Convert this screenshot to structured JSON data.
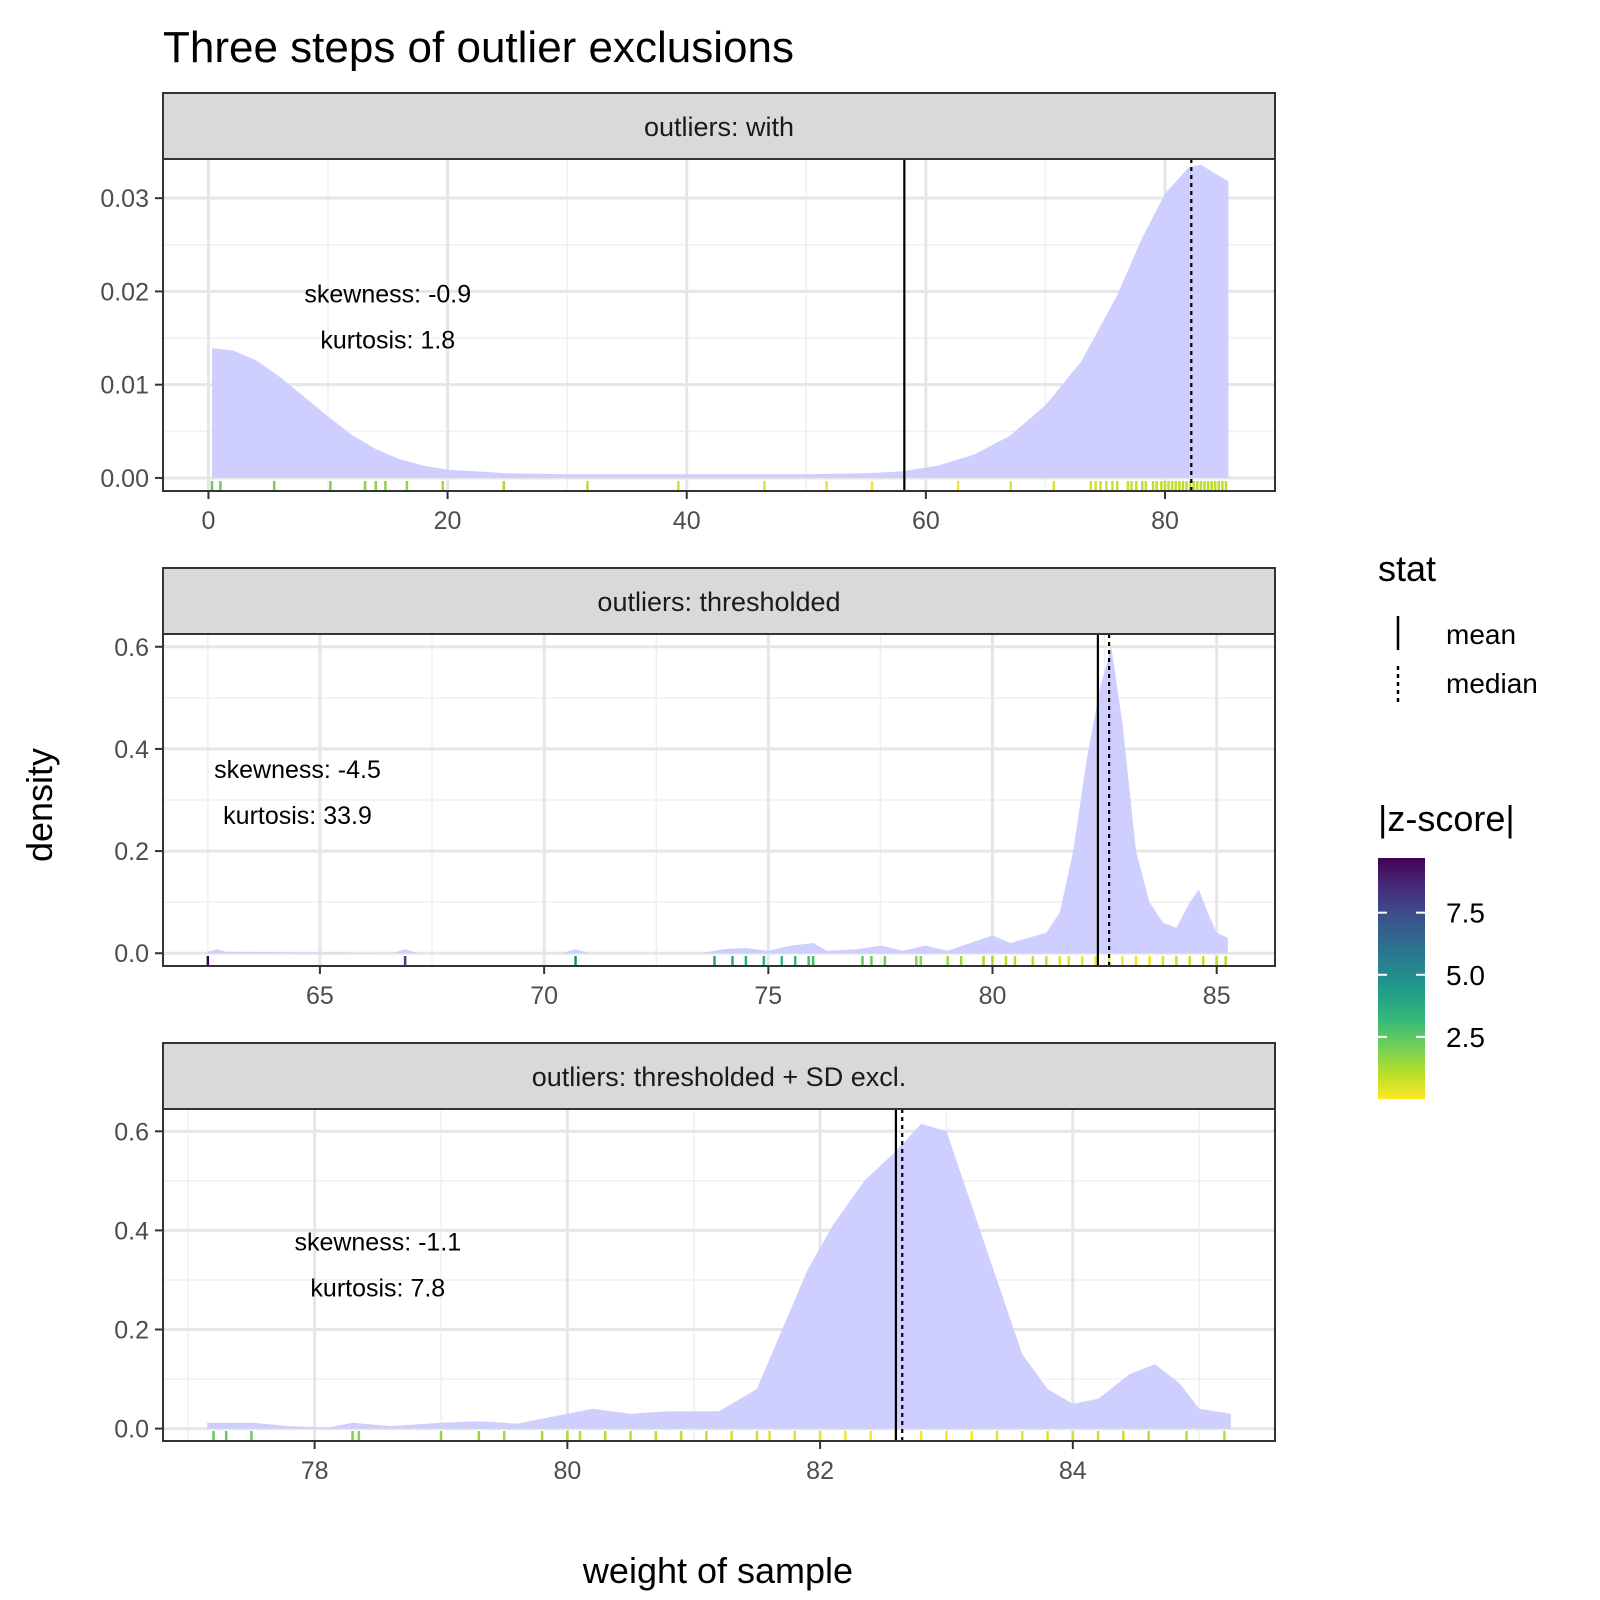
{
  "chart_data": {
    "type": "area",
    "title": "Three steps of outlier exclusions",
    "xlabel": "weight of sample",
    "ylabel": "density",
    "fill_color": "#ccccff",
    "grid": true,
    "legend": {
      "position": "right",
      "stat": {
        "title": "stat",
        "items": [
          {
            "label": "mean",
            "linetype": "solid"
          },
          {
            "label": "median",
            "linetype": "dotted"
          }
        ]
      },
      "zscore": {
        "title": "|z-score|",
        "scale": "viridis",
        "range": [
          0,
          9.7
        ],
        "ticks": [
          {
            "value": 7.5,
            "label": "7.5"
          },
          {
            "value": 5.0,
            "label": "5.0"
          },
          {
            "value": 2.5,
            "label": "2.5"
          }
        ],
        "colors": [
          "#FDE725",
          "#B5DE2B",
          "#6ECE58",
          "#35B779",
          "#1F9E89",
          "#26828E",
          "#31688E",
          "#3E4A89",
          "#482878",
          "#440154"
        ]
      }
    },
    "panels": [
      {
        "strip": "outliers: with",
        "xlim": [
          -3.8,
          89.2
        ],
        "ylim": [
          -0.0014,
          0.0342
        ],
        "xticks": [
          {
            "value": 0,
            "label": "0"
          },
          {
            "value": 20,
            "label": "20"
          },
          {
            "value": 40,
            "label": "40"
          },
          {
            "value": 60,
            "label": "60"
          },
          {
            "value": 80,
            "label": "80"
          }
        ],
        "yticks": [
          {
            "value": 0,
            "label": "0.00"
          },
          {
            "value": 0.01,
            "label": "0.01"
          },
          {
            "value": 0.02,
            "label": "0.02"
          },
          {
            "value": 0.03,
            "label": "0.03"
          }
        ],
        "mean": 58.2,
        "median": 82.2,
        "skewness_label": "skewness: -0.9",
        "kurtosis_label": "kurtosis: 1.8",
        "annotation_at": [
          15,
          0.0175
        ],
        "density": [
          [
            0.3,
            0.0139
          ],
          [
            2,
            0.0137
          ],
          [
            4,
            0.0126
          ],
          [
            6,
            0.0108
          ],
          [
            8,
            0.0087
          ],
          [
            10,
            0.0066
          ],
          [
            12,
            0.0046
          ],
          [
            14,
            0.0031
          ],
          [
            16,
            0.002
          ],
          [
            18,
            0.0013
          ],
          [
            20,
            0.0009
          ],
          [
            25,
            0.0005
          ],
          [
            30,
            0.0004
          ],
          [
            40,
            0.0004
          ],
          [
            50,
            0.0004
          ],
          [
            55,
            0.0005
          ],
          [
            58,
            0.0007
          ],
          [
            61,
            0.0013
          ],
          [
            64,
            0.0025
          ],
          [
            67,
            0.0045
          ],
          [
            70,
            0.0078
          ],
          [
            73,
            0.0125
          ],
          [
            76,
            0.0196
          ],
          [
            78,
            0.0255
          ],
          [
            80,
            0.0305
          ],
          [
            82,
            0.0333
          ],
          [
            83,
            0.0336
          ],
          [
            84,
            0.0328
          ],
          [
            85.3,
            0.0318
          ]
        ],
        "rug": [
          [
            0.3,
            2.3
          ],
          [
            1.0,
            2.2
          ],
          [
            5.5,
            2.1
          ],
          [
            10.2,
            1.9
          ],
          [
            13.1,
            1.8
          ],
          [
            14.0,
            1.8
          ],
          [
            14.8,
            1.7
          ],
          [
            16.6,
            1.6
          ],
          [
            19.6,
            1.4
          ],
          [
            24.7,
            1.2
          ],
          [
            31.7,
            0.9
          ],
          [
            39.3,
            0.6
          ],
          [
            46.5,
            0.4
          ],
          [
            51.7,
            0.2
          ],
          [
            55.5,
            0.1
          ],
          [
            62.7,
            0.2
          ],
          [
            67.1,
            0.4
          ],
          [
            70.7,
            0.5
          ],
          [
            73.8,
            0.7
          ],
          [
            74.2,
            0.7
          ],
          [
            74.6,
            0.7
          ],
          [
            75.1,
            0.7
          ],
          [
            75.6,
            0.8
          ],
          [
            76.0,
            0.8
          ],
          [
            76.9,
            0.8
          ],
          [
            77.2,
            0.8
          ],
          [
            77.6,
            0.8
          ],
          [
            78.1,
            0.9
          ],
          [
            78.4,
            0.9
          ],
          [
            79.0,
            0.9
          ],
          [
            79.3,
            0.9
          ],
          [
            79.7,
            0.9
          ],
          [
            80.0,
            0.9
          ],
          [
            80.3,
            0.9
          ],
          [
            80.6,
            0.9
          ],
          [
            80.9,
            0.9
          ],
          [
            81.2,
            1.0
          ],
          [
            81.5,
            1.0
          ],
          [
            81.8,
            1.0
          ],
          [
            82.1,
            1.0
          ],
          [
            82.4,
            1.0
          ],
          [
            82.7,
            1.0
          ],
          [
            83.0,
            1.0
          ],
          [
            83.3,
            1.0
          ],
          [
            83.6,
            1.0
          ],
          [
            83.9,
            1.0
          ],
          [
            84.2,
            1.0
          ],
          [
            84.5,
            1.0
          ],
          [
            84.8,
            1.0
          ],
          [
            85.1,
            1.0
          ]
        ]
      },
      {
        "strip": "outliers: thresholded",
        "xlim": [
          61.5,
          86.3
        ],
        "ylim": [
          -0.025,
          0.625
        ],
        "xticks": [
          {
            "value": 65,
            "label": "65"
          },
          {
            "value": 70,
            "label": "70"
          },
          {
            "value": 75,
            "label": "75"
          },
          {
            "value": 80,
            "label": "80"
          },
          {
            "value": 85,
            "label": "85"
          }
        ],
        "yticks": [
          {
            "value": 0,
            "label": "0.0"
          },
          {
            "value": 0.2,
            "label": "0.2"
          },
          {
            "value": 0.4,
            "label": "0.4"
          },
          {
            "value": 0.6,
            "label": "0.6"
          }
        ],
        "mean": 82.35,
        "median": 82.6,
        "skewness_label": "skewness: -4.5",
        "kurtosis_label": "kurtosis: 33.9",
        "annotation_at": [
          64.5,
          0.32
        ],
        "density": [
          [
            62.5,
            0.003
          ],
          [
            62.7,
            0.008
          ],
          [
            62.9,
            0.003
          ],
          [
            66.6,
            0.0
          ],
          [
            66.9,
            0.008
          ],
          [
            67.2,
            0.0
          ],
          [
            70.4,
            0.0
          ],
          [
            70.7,
            0.008
          ],
          [
            71.0,
            0.0
          ],
          [
            73.5,
            0.0
          ],
          [
            74.0,
            0.008
          ],
          [
            74.5,
            0.01
          ],
          [
            75.0,
            0.005
          ],
          [
            75.5,
            0.015
          ],
          [
            76.0,
            0.02
          ],
          [
            76.3,
            0.005
          ],
          [
            77.0,
            0.008
          ],
          [
            77.5,
            0.015
          ],
          [
            78.0,
            0.005
          ],
          [
            78.5,
            0.015
          ],
          [
            79.0,
            0.005
          ],
          [
            79.5,
            0.02
          ],
          [
            80.0,
            0.035
          ],
          [
            80.4,
            0.02
          ],
          [
            80.8,
            0.03
          ],
          [
            81.2,
            0.04
          ],
          [
            81.5,
            0.08
          ],
          [
            81.8,
            0.2
          ],
          [
            82.1,
            0.38
          ],
          [
            82.4,
            0.52
          ],
          [
            82.65,
            0.6
          ],
          [
            82.9,
            0.45
          ],
          [
            83.2,
            0.2
          ],
          [
            83.5,
            0.1
          ],
          [
            83.8,
            0.06
          ],
          [
            84.1,
            0.05
          ],
          [
            84.4,
            0.1
          ],
          [
            84.6,
            0.125
          ],
          [
            84.8,
            0.08
          ],
          [
            85.0,
            0.04
          ],
          [
            85.25,
            0.03
          ]
        ],
        "rug": [
          [
            62.5,
            9.7
          ],
          [
            66.9,
            7.8
          ],
          [
            70.7,
            5.2
          ],
          [
            73.8,
            4.1
          ],
          [
            74.2,
            3.8
          ],
          [
            74.5,
            3.7
          ],
          [
            74.9,
            3.6
          ],
          [
            75.3,
            3.4
          ],
          [
            75.6,
            3.2
          ],
          [
            75.9,
            3.0
          ],
          [
            76.0,
            3.0
          ],
          [
            77.1,
            2.4
          ],
          [
            77.3,
            2.3
          ],
          [
            77.6,
            2.2
          ],
          [
            78.3,
            1.9
          ],
          [
            78.4,
            1.8
          ],
          [
            79.0,
            1.6
          ],
          [
            79.3,
            1.5
          ],
          [
            79.8,
            1.3
          ],
          [
            80.0,
            1.2
          ],
          [
            80.3,
            1.1
          ],
          [
            80.5,
            1.0
          ],
          [
            80.9,
            0.9
          ],
          [
            81.2,
            0.8
          ],
          [
            81.5,
            0.6
          ],
          [
            81.7,
            0.5
          ],
          [
            82.0,
            0.3
          ],
          [
            82.3,
            0.2
          ],
          [
            82.6,
            0.1
          ],
          [
            82.9,
            0.1
          ],
          [
            83.2,
            0.2
          ],
          [
            83.5,
            0.3
          ],
          [
            83.8,
            0.5
          ],
          [
            84.1,
            0.7
          ],
          [
            84.4,
            0.8
          ],
          [
            84.7,
            0.9
          ],
          [
            85.0,
            1.0
          ],
          [
            85.2,
            1.1
          ]
        ]
      },
      {
        "strip": "outliers: thresholded + SD excl.",
        "xlim": [
          76.8,
          85.6
        ],
        "ylim": [
          -0.025,
          0.645
        ],
        "xticks": [
          {
            "value": 78,
            "label": "78"
          },
          {
            "value": 80,
            "label": "80"
          },
          {
            "value": 82,
            "label": "82"
          },
          {
            "value": 84,
            "label": "84"
          }
        ],
        "yticks": [
          {
            "value": 0,
            "label": "0.0"
          },
          {
            "value": 0.2,
            "label": "0.2"
          },
          {
            "value": 0.4,
            "label": "0.4"
          },
          {
            "value": 0.6,
            "label": "0.6"
          }
        ],
        "mean": 82.6,
        "median": 82.65,
        "skewness_label": "skewness: -1.1",
        "kurtosis_label": "kurtosis: 7.8",
        "annotation_at": [
          78.5,
          0.335
        ],
        "density": [
          [
            77.15,
            0.012
          ],
          [
            77.5,
            0.012
          ],
          [
            77.8,
            0.005
          ],
          [
            78.1,
            0.002
          ],
          [
            78.3,
            0.012
          ],
          [
            78.6,
            0.005
          ],
          [
            79.0,
            0.012
          ],
          [
            79.3,
            0.015
          ],
          [
            79.6,
            0.01
          ],
          [
            79.9,
            0.025
          ],
          [
            80.2,
            0.04
          ],
          [
            80.5,
            0.03
          ],
          [
            80.8,
            0.035
          ],
          [
            81.0,
            0.035
          ],
          [
            81.2,
            0.035
          ],
          [
            81.5,
            0.08
          ],
          [
            81.7,
            0.2
          ],
          [
            81.9,
            0.32
          ],
          [
            82.1,
            0.41
          ],
          [
            82.35,
            0.5
          ],
          [
            82.6,
            0.56
          ],
          [
            82.8,
            0.615
          ],
          [
            83.0,
            0.6
          ],
          [
            83.2,
            0.45
          ],
          [
            83.4,
            0.3
          ],
          [
            83.6,
            0.15
          ],
          [
            83.8,
            0.08
          ],
          [
            84.0,
            0.05
          ],
          [
            84.2,
            0.06
          ],
          [
            84.45,
            0.11
          ],
          [
            84.65,
            0.13
          ],
          [
            84.85,
            0.09
          ],
          [
            85.0,
            0.04
          ],
          [
            85.25,
            0.03
          ]
        ],
        "rug": [
          [
            77.2,
            2.4
          ],
          [
            77.3,
            2.3
          ],
          [
            77.5,
            2.2
          ],
          [
            78.3,
            1.9
          ],
          [
            78.35,
            1.85
          ],
          [
            79.0,
            1.6
          ],
          [
            79.3,
            1.5
          ],
          [
            79.5,
            1.4
          ],
          [
            79.8,
            1.3
          ],
          [
            80.0,
            1.2
          ],
          [
            80.1,
            1.1
          ],
          [
            80.3,
            1.1
          ],
          [
            80.5,
            1.0
          ],
          [
            80.7,
            0.9
          ],
          [
            80.9,
            0.9
          ],
          [
            81.1,
            0.8
          ],
          [
            81.3,
            0.7
          ],
          [
            81.5,
            0.6
          ],
          [
            81.6,
            0.5
          ],
          [
            81.8,
            0.4
          ],
          [
            82.0,
            0.3
          ],
          [
            82.2,
            0.2
          ],
          [
            82.4,
            0.1
          ],
          [
            82.6,
            0.05
          ],
          [
            82.8,
            0.1
          ],
          [
            83.0,
            0.1
          ],
          [
            83.2,
            0.2
          ],
          [
            83.4,
            0.3
          ],
          [
            83.6,
            0.4
          ],
          [
            83.8,
            0.5
          ],
          [
            84.0,
            0.6
          ],
          [
            84.2,
            0.7
          ],
          [
            84.4,
            0.8
          ],
          [
            84.6,
            0.9
          ],
          [
            84.9,
            1.0
          ],
          [
            85.2,
            1.1
          ]
        ]
      }
    ]
  }
}
